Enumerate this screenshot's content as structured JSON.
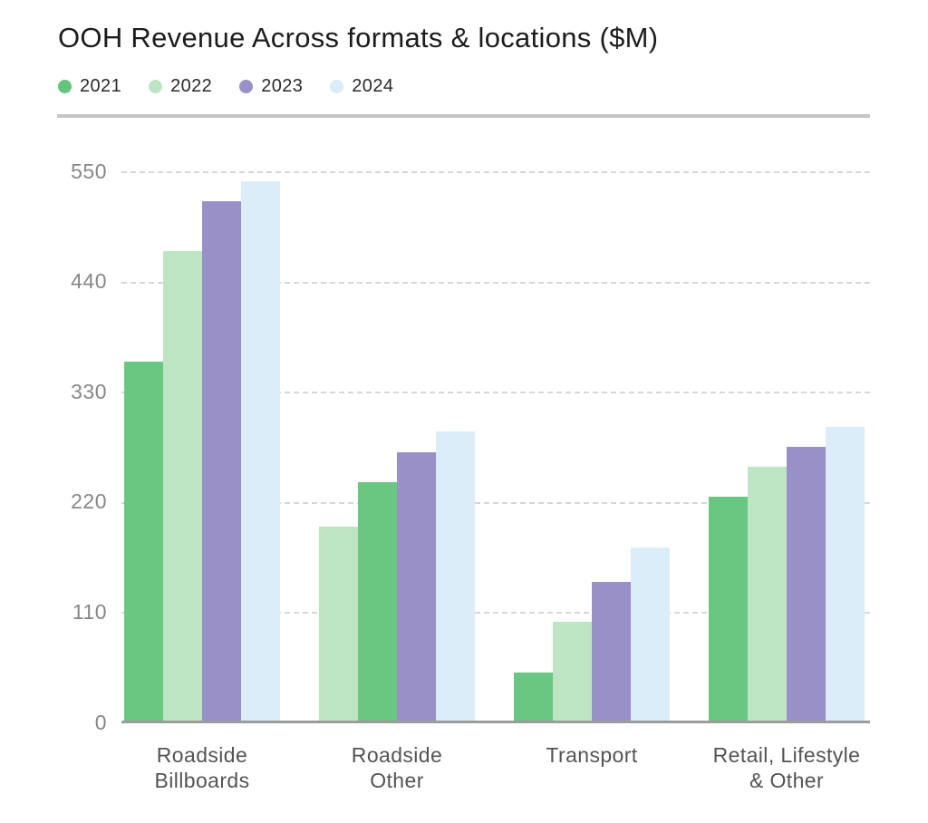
{
  "title": "OOH Revenue Across formats & locations ($M)",
  "legend": {
    "items": [
      {
        "label": "2021",
        "color": "#63c57c"
      },
      {
        "label": "2022",
        "color": "#bde5c4"
      },
      {
        "label": "2023",
        "color": "#9a90c8"
      },
      {
        "label": "2024",
        "color": "#daedf8"
      }
    ]
  },
  "chart_data": {
    "type": "bar",
    "title": "OOH Revenue Across formats & locations ($M)",
    "categories": [
      "Roadside Billboards",
      "Roadside Other",
      "Transport",
      "Retail, Lifestyle & Other"
    ],
    "category_label_lines": [
      [
        "Roadside",
        "Billboards"
      ],
      [
        "Roadside",
        "Other"
      ],
      [
        "Transport"
      ],
      [
        "Retail, Lifestyle",
        "& Other"
      ]
    ],
    "series": [
      {
        "name": "2021",
        "color": "#6ac782",
        "values": [
          360,
          240,
          50,
          225
        ]
      },
      {
        "name": "2022",
        "color": "#bde5c4",
        "values": [
          470,
          195,
          100,
          255
        ]
      },
      {
        "name": "2023",
        "color": "#9a90c8",
        "values": [
          520,
          270,
          140,
          275
        ]
      },
      {
        "name": "2024",
        "color": "#daedf8",
        "values": [
          540,
          290,
          175,
          295
        ]
      }
    ],
    "xlabel": "",
    "ylabel": "",
    "ylim": [
      0,
      550
    ],
    "yticks": [
      0,
      110,
      220,
      330,
      440,
      550
    ],
    "grid": "horizontal-dashed",
    "legend_position": "top-left",
    "bars_sorted_ascending_within_group": true
  }
}
